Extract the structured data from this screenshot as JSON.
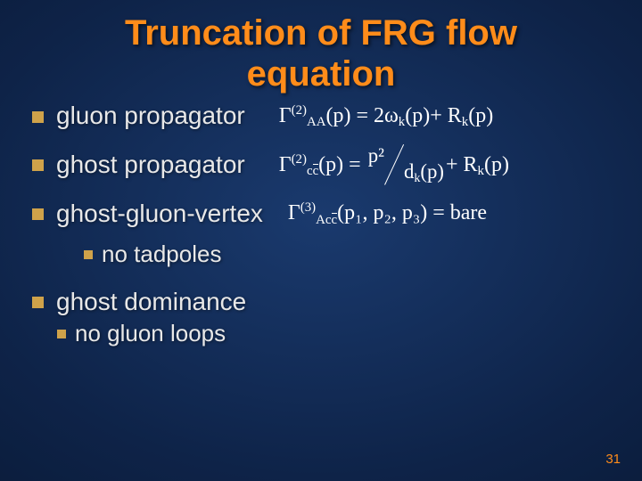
{
  "colors": {
    "accent": "#ff8c1a",
    "body_text": "#e8e8e8",
    "formula": "#ffffff",
    "bullet": "#cfa24a"
  },
  "title": {
    "line1": "Truncation of FRG flow",
    "line2": "equation"
  },
  "items": [
    {
      "label": "gluon propagator"
    },
    {
      "label": "ghost propagator"
    },
    {
      "label": "ghost-gluon-vertex"
    }
  ],
  "sub_item_4": "no tadpoles",
  "item5": {
    "label": "ghost dominance",
    "sub": "no gluon loops"
  },
  "formulas": {
    "f1": {
      "gamma_sup": "(2)",
      "gamma_sub": "AA",
      "arg": "(p)",
      "rhs_a": "2ω",
      "rhs_a_sub": "k",
      "rhs_a_arg": "(p)",
      "plus": " + R",
      "rk_sub": "k",
      "rk_arg": "(p)"
    },
    "f2": {
      "gamma_sup": "(2)",
      "gamma_sub": "c̄c",
      "arg": "(p)",
      "num": "p²",
      "den_a": "d",
      "den_sub": "k",
      "den_arg": "(p)",
      "plus": " + R",
      "rk_sub": "k",
      "rk_arg": "(p)"
    },
    "f3": {
      "gamma_sup": "(3)",
      "gamma_sub": "Ac̄c",
      "arg": "(p₁, p₂, p₃)",
      "rhs": "bare"
    }
  },
  "page_number": "31",
  "typography": {
    "title_fontsize_pt": 30,
    "item_fontsize_pt": 21,
    "formula_fontsize_pt": 18,
    "pagenum_fontsize_pt": 11,
    "font_family": "Arial"
  }
}
